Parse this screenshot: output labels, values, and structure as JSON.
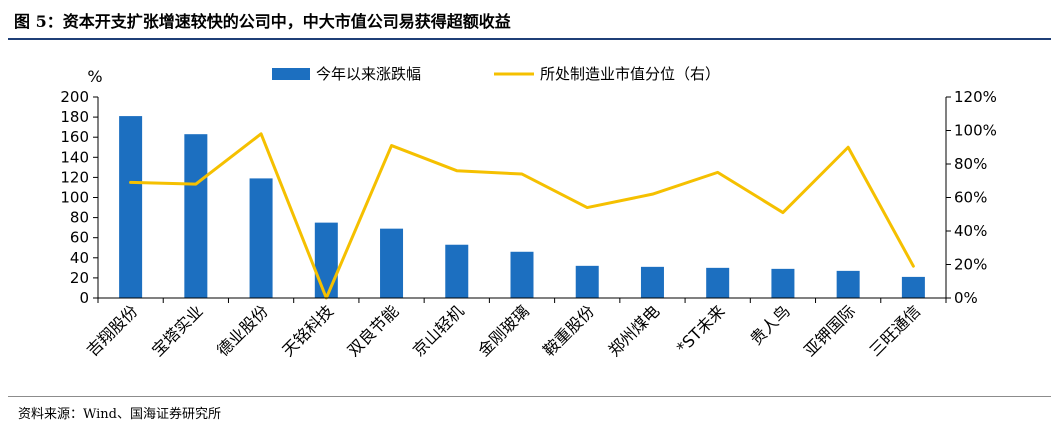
{
  "title": "图 5：资本开支扩张增速较快的公司中，中大市值公司易获得超额收益",
  "source": "资料来源：Wind、国海证券研究所",
  "colors": {
    "bar": "#1c6fc0",
    "line": "#f5c000",
    "title_rule": "#1f3f77"
  },
  "chart_data": {
    "type": "bar",
    "ylabel": "%",
    "ylim": [
      0,
      200
    ],
    "yticks": [
      0,
      20,
      40,
      60,
      80,
      100,
      120,
      140,
      160,
      180,
      200
    ],
    "y2lim": [
      0,
      120
    ],
    "y2ticks": [
      "0%",
      "20%",
      "40%",
      "60%",
      "80%",
      "100%",
      "120%"
    ],
    "legend_position": "top",
    "grid": false,
    "categories": [
      "吉翔股份",
      "宝塔实业",
      "德业股份",
      "天铭科技",
      "双良节能",
      "京山轻机",
      "金刚玻璃",
      "鞍重股份",
      "郑州煤电",
      "*ST未来",
      "贵人鸟",
      "亚钾国际",
      "三旺通信"
    ],
    "series": [
      {
        "name": "今年以来涨跌幅",
        "type": "bar",
        "axis": "left",
        "values": [
          181,
          163,
          119,
          75,
          69,
          53,
          46,
          32,
          31,
          30,
          29,
          27,
          21
        ]
      },
      {
        "name": "所处制造业市值分位（右）",
        "type": "line",
        "axis": "right",
        "values": [
          69,
          68,
          98,
          0,
          91,
          76,
          74,
          54,
          62,
          75,
          51,
          90,
          19
        ]
      }
    ]
  }
}
